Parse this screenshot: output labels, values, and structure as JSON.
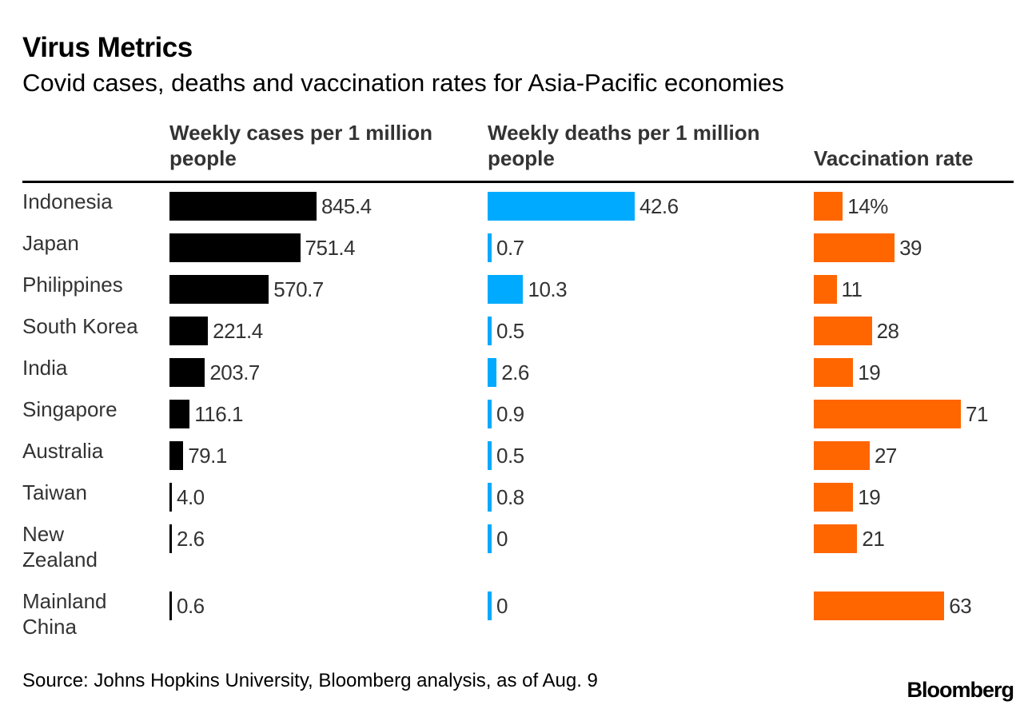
{
  "title": "Virus Metrics",
  "subtitle": "Covid cases, deaths and vaccination rates for Asia-Pacific economies",
  "source": "Source: Johns Hopkins University, Bloomberg analysis, as of Aug. 9",
  "brand": "Bloomberg",
  "colors": {
    "cases": "#000000",
    "deaths": "#00aaff",
    "vaccination": "#ff6600"
  },
  "chart_data": {
    "type": "bar",
    "columns": [
      {
        "key": "cases",
        "label_line1": "Weekly cases per 1 million",
        "label_line2": "people"
      },
      {
        "key": "deaths",
        "label_line1": "Weekly deaths per 1 million",
        "label_line2": "people"
      },
      {
        "key": "vaccination",
        "label_line1": "",
        "label_line2": "Vaccination rate"
      }
    ],
    "rows": [
      {
        "name_line1": "Indonesia",
        "name_line2": "",
        "cases": 845.4,
        "cases_label": "845.4",
        "deaths": 42.6,
        "deaths_label": "42.6",
        "vaccination": 14,
        "vaccination_label": "14%"
      },
      {
        "name_line1": "Japan",
        "name_line2": "",
        "cases": 751.4,
        "cases_label": "751.4",
        "deaths": 0.7,
        "deaths_label": "0.7",
        "vaccination": 39,
        "vaccination_label": "39"
      },
      {
        "name_line1": "Philippines",
        "name_line2": "",
        "cases": 570.7,
        "cases_label": "570.7",
        "deaths": 10.3,
        "deaths_label": "10.3",
        "vaccination": 11,
        "vaccination_label": "11"
      },
      {
        "name_line1": "South Korea",
        "name_line2": "",
        "cases": 221.4,
        "cases_label": "221.4",
        "deaths": 0.5,
        "deaths_label": "0.5",
        "vaccination": 28,
        "vaccination_label": "28"
      },
      {
        "name_line1": "India",
        "name_line2": "",
        "cases": 203.7,
        "cases_label": "203.7",
        "deaths": 2.6,
        "deaths_label": "2.6",
        "vaccination": 19,
        "vaccination_label": "19"
      },
      {
        "name_line1": "Singapore",
        "name_line2": "",
        "cases": 116.1,
        "cases_label": "116.1",
        "deaths": 0.9,
        "deaths_label": "0.9",
        "vaccination": 71,
        "vaccination_label": "71"
      },
      {
        "name_line1": "Australia",
        "name_line2": "",
        "cases": 79.1,
        "cases_label": "79.1",
        "deaths": 0.5,
        "deaths_label": "0.5",
        "vaccination": 27,
        "vaccination_label": "27"
      },
      {
        "name_line1": "Taiwan",
        "name_line2": "",
        "cases": 4.0,
        "cases_label": "4.0",
        "deaths": 0.8,
        "deaths_label": "0.8",
        "vaccination": 19,
        "vaccination_label": "19"
      },
      {
        "name_line1": "New",
        "name_line2": "Zealand",
        "cases": 2.6,
        "cases_label": "2.6",
        "deaths": 0,
        "deaths_label": "0",
        "vaccination": 21,
        "vaccination_label": "21"
      },
      {
        "name_line1": "Mainland",
        "name_line2": "China",
        "cases": 0.6,
        "cases_label": "0.6",
        "deaths": 0,
        "deaths_label": "0",
        "vaccination": 63,
        "vaccination_label": "63"
      }
    ]
  }
}
